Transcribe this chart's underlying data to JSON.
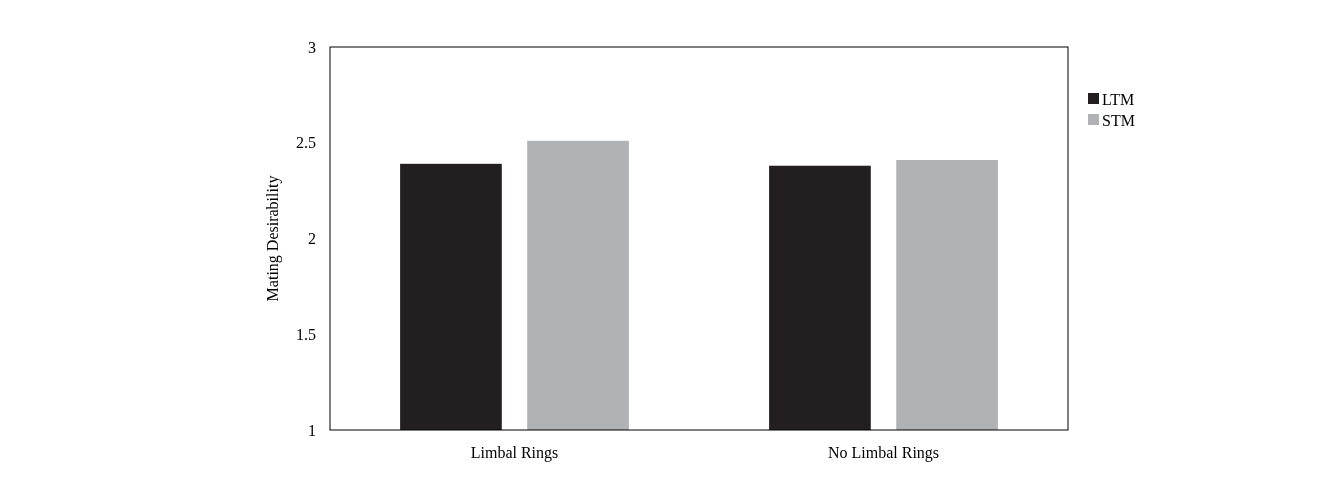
{
  "chart_data": {
    "type": "bar",
    "ylabel": "Mating Desirability",
    "categories": [
      "Limbal Rings",
      "No Limbal Rings"
    ],
    "series": [
      {
        "name": "LTM",
        "color": "#231f20",
        "values": [
          2.39,
          2.38
        ]
      },
      {
        "name": "STM",
        "color": "#b1b2b5",
        "values": [
          2.51,
          2.41
        ]
      }
    ],
    "ylim": [
      1,
      3
    ],
    "yticks": [
      1,
      1.5,
      2,
      2.5,
      3
    ],
    "grid": false,
    "legend": "right"
  }
}
